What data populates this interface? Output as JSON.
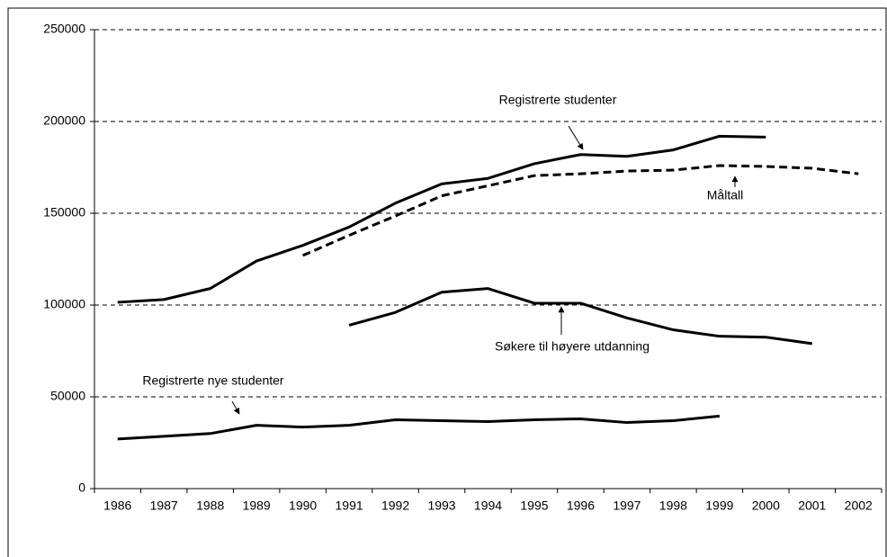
{
  "chart_data": {
    "type": "line",
    "categories": [
      "1986",
      "1987",
      "1988",
      "1989",
      "1990",
      "1991",
      "1992",
      "1993",
      "1994",
      "1995",
      "1996",
      "1997",
      "1998",
      "1999",
      "2000",
      "2001",
      "2002"
    ],
    "series": [
      {
        "name": "Registrerte studenter",
        "color": "#000000",
        "dashed": false,
        "values": [
          101500,
          103000,
          109000,
          124000,
          132500,
          142500,
          155500,
          166000,
          169000,
          177000,
          182000,
          181000,
          184500,
          192000,
          191500,
          null,
          null
        ]
      },
      {
        "name": "Måltall",
        "color": "#000000",
        "dashed": true,
        "values": [
          null,
          null,
          null,
          null,
          127000,
          138000,
          148500,
          159500,
          165000,
          170500,
          171500,
          173000,
          173500,
          176000,
          175500,
          174500,
          171500
        ]
      },
      {
        "name": "Søkere til høyere utdanning",
        "color": "#000000",
        "dashed": false,
        "values": [
          null,
          null,
          null,
          null,
          null,
          89000,
          96000,
          107000,
          109000,
          101000,
          101000,
          93000,
          86500,
          83000,
          82500,
          79000,
          null
        ]
      },
      {
        "name": "Registrerte nye studenter",
        "color": "#000000",
        "dashed": false,
        "values": [
          27000,
          28500,
          30000,
          34500,
          33500,
          34500,
          37500,
          37000,
          36500,
          37500,
          38000,
          36000,
          37000,
          39500,
          null,
          null,
          null
        ]
      }
    ],
    "ylim": [
      0,
      250000
    ],
    "yticks": [
      0,
      50000,
      100000,
      150000,
      200000,
      250000
    ],
    "grid": true
  }
}
